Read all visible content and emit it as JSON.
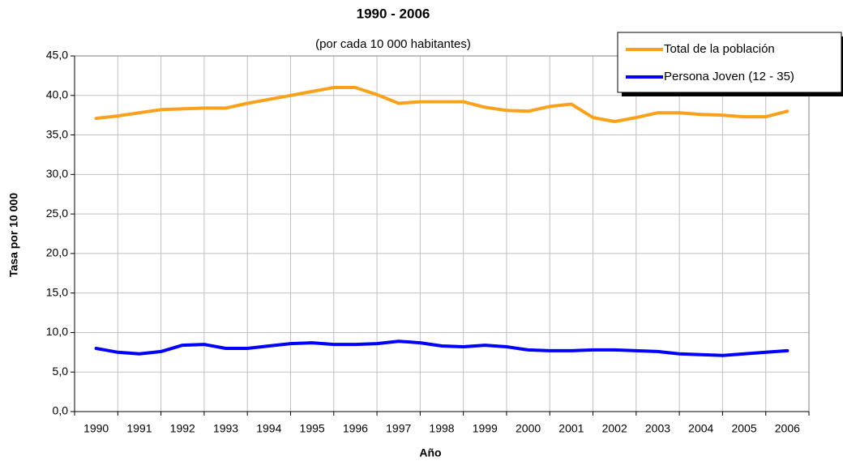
{
  "chart_data": {
    "type": "line",
    "title": "1990 - 2006",
    "subtitle": "(por cada 10 000 habitantes)",
    "x_label": "Año",
    "y_label": "Tasa por 10 000",
    "categories": [
      "1990",
      null,
      "1991",
      null,
      "1992",
      null,
      "1993",
      null,
      "1994",
      null,
      "1995",
      null,
      "1996",
      null,
      "1997",
      null,
      "1998",
      null,
      "1999",
      null,
      "2000",
      null,
      "2001",
      null,
      "2002",
      null,
      "2003",
      null,
      "2004",
      null,
      "2005",
      null,
      "2006"
    ],
    "series": [
      {
        "name": "Total de la población",
        "color": "#f9a11b",
        "values": [
          37.1,
          37.4,
          37.8,
          38.2,
          38.3,
          38.4,
          38.4,
          39.0,
          39.5,
          40.0,
          40.5,
          41.0,
          41.0,
          40.1,
          39.0,
          39.2,
          39.2,
          39.2,
          38.5,
          38.1,
          38.0,
          38.6,
          38.9,
          37.2,
          36.7,
          37.2,
          37.8,
          37.8,
          37.6,
          37.5,
          37.3,
          37.3,
          38.0
        ]
      },
      {
        "name": "Persona Joven (12 - 35)",
        "color": "#0000ff",
        "values": [
          8.0,
          7.5,
          7.3,
          7.6,
          8.4,
          8.5,
          8.0,
          8.0,
          8.3,
          8.6,
          8.7,
          8.5,
          8.5,
          8.6,
          8.9,
          8.7,
          8.3,
          8.2,
          8.4,
          8.2,
          7.8,
          7.7,
          7.7,
          7.8,
          7.8,
          7.7,
          7.6,
          7.3,
          7.2,
          7.1,
          7.3,
          7.5,
          7.7
        ]
      }
    ],
    "ylim": [
      0,
      45
    ],
    "yticks": [
      {
        "value": 0,
        "label": "0,0"
      },
      {
        "value": 5,
        "label": "5,0"
      },
      {
        "value": 10,
        "label": "10,0"
      },
      {
        "value": 15,
        "label": "15,0"
      },
      {
        "value": 20,
        "label": "20,0"
      },
      {
        "value": 25,
        "label": "25,0"
      },
      {
        "value": 30,
        "label": "30,0"
      },
      {
        "value": 35,
        "label": "35,0"
      },
      {
        "value": 40,
        "label": "40,0"
      },
      {
        "value": 45,
        "label": "45,0"
      }
    ],
    "grid": true,
    "legend": "top-right"
  }
}
